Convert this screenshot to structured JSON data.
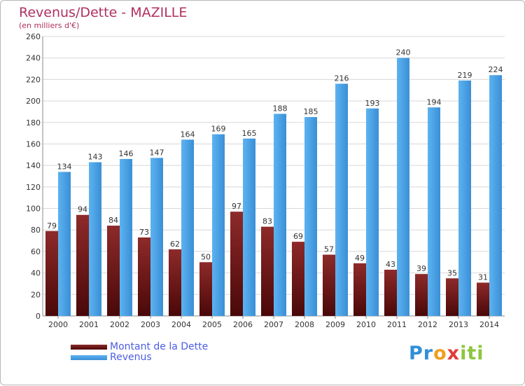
{
  "title": "Revenus/Dette - MAZILLE",
  "subtitle": "(en milliers d'€)",
  "colors": {
    "dette": "#7a1c1c",
    "revenus": "#4aa3e6",
    "title": "#b03060",
    "legend": "#4b5de0"
  },
  "logo_icon": "proxiti-logo",
  "chart_data": {
    "type": "bar",
    "title": "Revenus/Dette - MAZILLE",
    "ylabel": "(en milliers d'€)",
    "xlabel": "",
    "ylim": [
      0,
      260
    ],
    "yticks": [
      0,
      20,
      40,
      60,
      80,
      100,
      120,
      140,
      160,
      180,
      200,
      220,
      240,
      260
    ],
    "grid": true,
    "legend_position": "bottom-left",
    "categories": [
      "2000",
      "2001",
      "2002",
      "2003",
      "2004",
      "2005",
      "2006",
      "2007",
      "2008",
      "2009",
      "2010",
      "2011",
      "2012",
      "2013",
      "2014"
    ],
    "series": [
      {
        "name": "Montant de la Dette",
        "values": [
          79,
          94,
          84,
          73,
          62,
          50,
          97,
          83,
          69,
          57,
          49,
          43,
          39,
          35,
          31
        ]
      },
      {
        "name": "Revenus",
        "values": [
          134,
          143,
          146,
          147,
          164,
          169,
          165,
          188,
          185,
          216,
          193,
          240,
          194,
          219,
          224
        ]
      }
    ]
  }
}
